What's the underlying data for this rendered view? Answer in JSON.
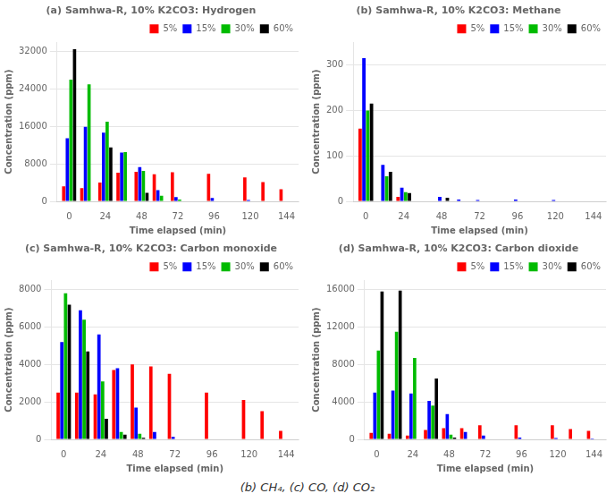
{
  "caption": "(b) CH₄, (c) CO, (d) CO₂",
  "chart_data": [
    {
      "type": "bar",
      "title": "(a) Samhwa-R, 10% K2CO3: Hydrogen",
      "x_label": "Time elapsed (min)",
      "y_label": "Concentration (ppm)",
      "x": [
        0,
        12,
        24,
        36,
        48,
        60,
        72,
        84,
        96,
        108,
        120,
        132,
        144
      ],
      "series": [
        {
          "name": "5%",
          "color": "#ff0000",
          "values": [
            3200,
            2800,
            4000,
            6100,
            6300,
            5800,
            6200,
            0,
            5900,
            0,
            5100,
            4100,
            2600
          ]
        },
        {
          "name": "15%",
          "color": "#0000ff",
          "values": [
            13500,
            15900,
            14700,
            10400,
            7300,
            2400,
            900,
            0,
            700,
            0,
            300,
            100,
            0
          ]
        },
        {
          "name": "30%",
          "color": "#00bb00",
          "values": [
            26000,
            25000,
            17000,
            10500,
            6500,
            1200,
            400,
            0,
            100,
            0,
            0,
            0,
            0
          ]
        },
        {
          "name": "60%",
          "color": "#000000",
          "values": [
            32500,
            0,
            11500,
            0,
            1800,
            0,
            0,
            0,
            0,
            0,
            0,
            0,
            0
          ]
        }
      ],
      "xlim": [
        -8,
        152
      ],
      "xticks": [
        0,
        24,
        48,
        72,
        96,
        120,
        144
      ],
      "ylim": [
        0,
        34000
      ],
      "yticks": [
        0,
        8000,
        16000,
        24000,
        32000
      ],
      "grid": "y",
      "legend": "upper right"
    },
    {
      "type": "bar",
      "title": "(b) Samhwa-R, 10% K2CO3: Methane",
      "x_label": "Time elapsed (min)",
      "y_label": "Concentration (ppm)",
      "x": [
        0,
        12,
        24,
        36,
        48,
        60,
        72,
        84,
        96,
        108,
        120,
        132,
        144
      ],
      "series": [
        {
          "name": "5%",
          "color": "#ff0000",
          "values": [
            160,
            0,
            10,
            0,
            0,
            0,
            0,
            0,
            0,
            0,
            0,
            0,
            0
          ]
        },
        {
          "name": "15%",
          "color": "#0000ff",
          "values": [
            315,
            80,
            30,
            0,
            10,
            4,
            3,
            0,
            4,
            0,
            3,
            0,
            0
          ]
        },
        {
          "name": "30%",
          "color": "#00bb00",
          "values": [
            200,
            55,
            20,
            0,
            0,
            0,
            0,
            0,
            0,
            0,
            0,
            0,
            0
          ]
        },
        {
          "name": "60%",
          "color": "#000000",
          "values": [
            215,
            65,
            18,
            0,
            8,
            0,
            0,
            0,
            0,
            0,
            0,
            0,
            0
          ]
        }
      ],
      "xlim": [
        -8,
        152
      ],
      "xticks": [
        0,
        24,
        48,
        72,
        96,
        120,
        144
      ],
      "ylim": [
        0,
        350
      ],
      "yticks": [
        0,
        100,
        200,
        300
      ],
      "grid": "y",
      "legend": "upper right"
    },
    {
      "type": "bar",
      "title": "(c) Samhwa-R, 10% K2CO3: Carbon monoxide",
      "x_label": "Time elapsed (min)",
      "y_label": "Concentration (ppm)",
      "x": [
        0,
        12,
        24,
        36,
        48,
        60,
        72,
        84,
        96,
        108,
        120,
        132,
        144
      ],
      "series": [
        {
          "name": "5%",
          "color": "#ff0000",
          "values": [
            2500,
            2500,
            2400,
            3700,
            4000,
            3900,
            3500,
            0,
            2500,
            0,
            2100,
            1500,
            450
          ]
        },
        {
          "name": "15%",
          "color": "#0000ff",
          "values": [
            5200,
            6900,
            5600,
            3800,
            1700,
            400,
            130,
            0,
            0,
            0,
            0,
            0,
            0
          ]
        },
        {
          "name": "30%",
          "color": "#00bb00",
          "values": [
            7800,
            6400,
            3100,
            400,
            300,
            0,
            0,
            0,
            0,
            0,
            0,
            0,
            0
          ]
        },
        {
          "name": "60%",
          "color": "#000000",
          "values": [
            7200,
            4700,
            1100,
            250,
            80,
            0,
            0,
            0,
            0,
            0,
            0,
            0,
            0
          ]
        }
      ],
      "xlim": [
        -8,
        152
      ],
      "xticks": [
        0,
        24,
        48,
        72,
        96,
        120,
        144
      ],
      "ylim": [
        0,
        8500
      ],
      "yticks": [
        0,
        2000,
        4000,
        6000,
        8000
      ],
      "grid": "y",
      "legend": "upper right"
    },
    {
      "type": "bar",
      "title": "(d) Samhwa-R, 10% K2CO3: Carbon dioxide",
      "x_label": "Time elapsed (min)",
      "y_label": "Concentration (ppm)",
      "x": [
        0,
        12,
        24,
        36,
        48,
        60,
        72,
        84,
        96,
        108,
        120,
        132,
        144
      ],
      "series": [
        {
          "name": "5%",
          "color": "#ff0000",
          "values": [
            700,
            600,
            400,
            1000,
            1200,
            1200,
            1500,
            0,
            1500,
            0,
            1500,
            1100,
            900
          ]
        },
        {
          "name": "15%",
          "color": "#0000ff",
          "values": [
            5000,
            5200,
            4900,
            4100,
            2700,
            800,
            400,
            0,
            200,
            0,
            150,
            0,
            100
          ]
        },
        {
          "name": "30%",
          "color": "#00bb00",
          "values": [
            9500,
            11500,
            8700,
            3600,
            500,
            0,
            0,
            0,
            0,
            0,
            0,
            0,
            0
          ]
        },
        {
          "name": "60%",
          "color": "#000000",
          "values": [
            15800,
            15900,
            0,
            6500,
            200,
            0,
            0,
            0,
            0,
            0,
            0,
            0,
            0
          ]
        }
      ],
      "xlim": [
        -8,
        152
      ],
      "xticks": [
        0,
        24,
        48,
        72,
        96,
        120,
        144
      ],
      "ylim": [
        0,
        17000
      ],
      "yticks": [
        0,
        4000,
        8000,
        12000,
        16000
      ],
      "grid": "y",
      "legend": "upper right"
    }
  ]
}
